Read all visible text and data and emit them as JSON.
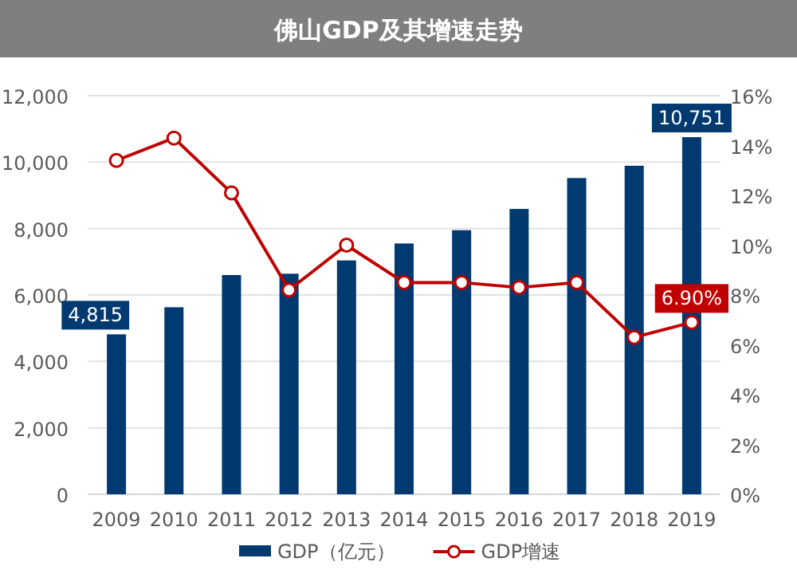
{
  "chart_data": {
    "type": "bar",
    "title": "佛山GDP及其增速走势",
    "categories": [
      "2009",
      "2010",
      "2011",
      "2012",
      "2013",
      "2014",
      "2015",
      "2016",
      "2017",
      "2018",
      "2019"
    ],
    "series": [
      {
        "name": "GDP（亿元）",
        "type": "bar",
        "color": "#003a70",
        "values": [
          4815,
          5630,
          6600,
          6640,
          7040,
          7550,
          7950,
          8590,
          9520,
          9890,
          10751
        ],
        "value_labels": [
          "4,815",
          null,
          null,
          null,
          null,
          null,
          null,
          null,
          null,
          null,
          "10,751"
        ]
      },
      {
        "name": "GDP增速",
        "type": "line",
        "axis": "y2",
        "color": "#c00000",
        "marker": "circle",
        "values": [
          13.4,
          14.3,
          12.1,
          8.2,
          10.0,
          8.5,
          8.5,
          8.3,
          8.5,
          6.3,
          6.9
        ],
        "value_labels": [
          null,
          null,
          null,
          null,
          null,
          null,
          null,
          null,
          null,
          null,
          "6.90%"
        ]
      }
    ],
    "ylim": [
      0,
      12000
    ],
    "yticks": [
      {
        "value": 0,
        "label": "0"
      },
      {
        "value": 2000,
        "label": "2,000"
      },
      {
        "value": 4000,
        "label": "4,000"
      },
      {
        "value": 6000,
        "label": "6,000"
      },
      {
        "value": 8000,
        "label": "8,000"
      },
      {
        "value": 10000,
        "label": "10,000"
      },
      {
        "value": 12000,
        "label": "12,000"
      }
    ],
    "y2lim": [
      0,
      16
    ],
    "y2ticks": [
      {
        "value": 0,
        "label": "0%"
      },
      {
        "value": 2,
        "label": "2%"
      },
      {
        "value": 4,
        "label": "4%"
      },
      {
        "value": 6,
        "label": "6%"
      },
      {
        "value": 8,
        "label": "8%"
      },
      {
        "value": 10,
        "label": "10%"
      },
      {
        "value": 12,
        "label": "12%"
      },
      {
        "value": 14,
        "label": "14%"
      },
      {
        "value": 16,
        "label": "16%"
      }
    ],
    "grid": "y",
    "legend": "bottom"
  }
}
